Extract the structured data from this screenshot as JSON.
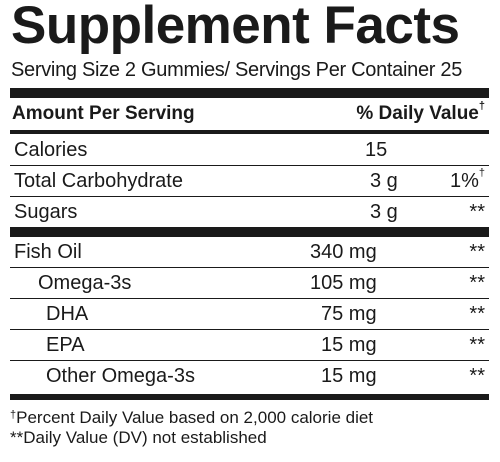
{
  "title": "Supplement Facts",
  "serving_line": "Serving Size 2 Gummies/ Servings Per Container 25",
  "header": {
    "left": "Amount Per Serving",
    "right": "% Daily Value",
    "right_mark": "†"
  },
  "rows": [
    {
      "name": "Calories",
      "amount": "15",
      "dv": ""
    },
    {
      "name": "Total Carbohydrate",
      "amount": "3 g",
      "dv": "1%",
      "dv_mark": "†"
    },
    {
      "name": "Sugars",
      "amount": "3 g",
      "dv": "**"
    },
    {
      "name": "Fish Oil",
      "amount": "340 mg",
      "dv": "**"
    },
    {
      "name": "Omega-3s",
      "amount": "105 mg",
      "dv": "**"
    },
    {
      "name": "DHA",
      "amount": "75 mg",
      "dv": "**"
    },
    {
      "name": "EPA",
      "amount": "15 mg",
      "dv": "**"
    },
    {
      "name": "Other Omega-3s",
      "amount": "15 mg",
      "dv": "**"
    }
  ],
  "footnotes": {
    "dagger_mark": "†",
    "dagger_text": "Percent Daily Value based on 2,000 calorie diet",
    "star_text": "**Daily Value (DV) not established"
  }
}
